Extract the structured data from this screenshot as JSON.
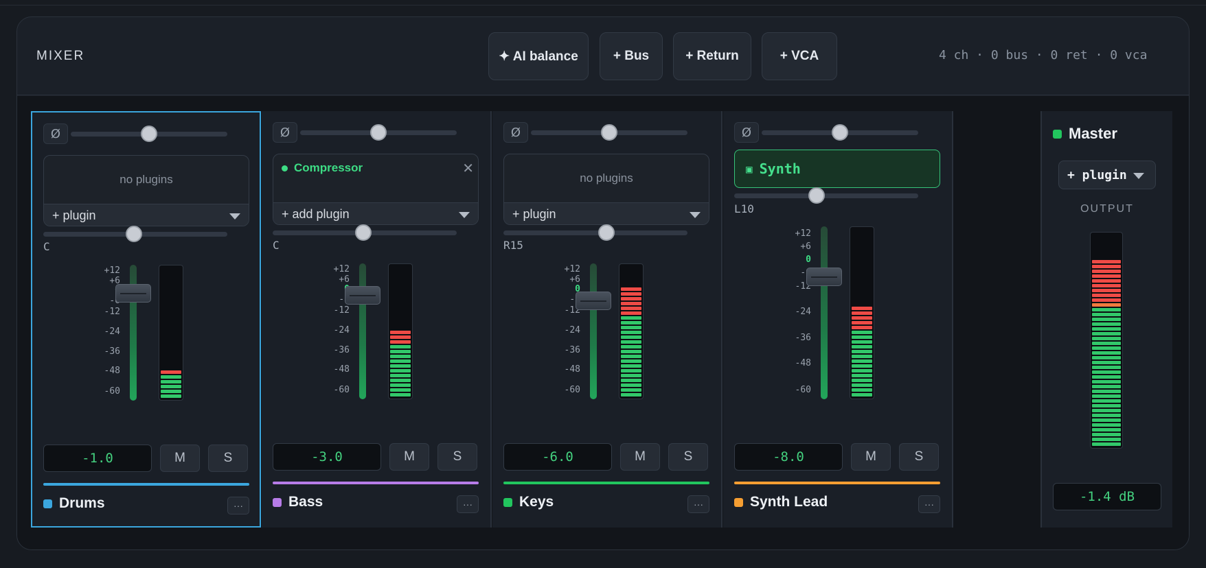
{
  "header": {
    "title": "MIXER",
    "buttons": {
      "ai_balance": "✦ AI balance",
      "bus": "+ Bus",
      "return": "+ Return",
      "vca": "+ VCA"
    },
    "counts": "4 ch · 0 bus · 0 ret · 0 vca"
  },
  "scale_labels": [
    "+12",
    "+6",
    "0",
    "-6",
    "-12",
    "-24",
    "-36",
    "-48",
    "-60"
  ],
  "channels": [
    {
      "name": "Drums",
      "color": "#3ba6de",
      "selected": true,
      "phase_label": "Ø",
      "plugins_empty_text": "no plugins",
      "plugin_select": "+ plugin",
      "pan_label": "C",
      "pan_value": 0.5,
      "trim_value": 0.5,
      "gain": "-1.0",
      "meter_level": 0.21,
      "mute": "M",
      "solo": "S",
      "more": "···"
    },
    {
      "name": "Bass",
      "color": "#b77ce8",
      "selected": false,
      "phase_label": "Ø",
      "plugins": [
        {
          "name": "Compressor",
          "remove": "✕"
        }
      ],
      "plugin_select": "+ add plugin",
      "pan_label": "C",
      "pan_value": 0.5,
      "trim_value": 0.5,
      "gain": "-3.0",
      "meter_level": 0.53,
      "mute": "M",
      "solo": "S",
      "more": "···"
    },
    {
      "name": "Keys",
      "color": "#22c55e",
      "selected": false,
      "phase_label": "Ø",
      "plugins_empty_text": "no plugins",
      "plugin_select": "+ plugin",
      "pan_label": "R15",
      "pan_value": 0.565,
      "trim_value": 0.5,
      "gain": "-6.0",
      "meter_level": 0.87,
      "mute": "M",
      "solo": "S",
      "more": "···"
    },
    {
      "name": "Synth Lead",
      "color": "#f59e32",
      "selected": false,
      "phase_label": "Ø",
      "instrument": "Synth",
      "instrument_icon": "▣",
      "pan_label": "L10",
      "pan_value": 0.45,
      "trim_value": 0.5,
      "gain": "-8.0",
      "meter_level": 0.53,
      "mute": "M",
      "solo": "S",
      "more": "···"
    }
  ],
  "master": {
    "name": "Master",
    "color": "#22c55e",
    "plugin_select": "+ plugin",
    "output_label": "OUTPUT",
    "gain": "-1.4 dB",
    "meter_level": 0.88
  }
}
